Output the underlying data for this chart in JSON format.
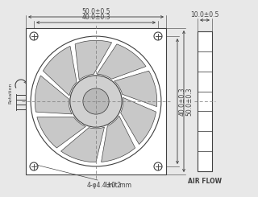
{
  "bg_color": "#e8e8e8",
  "line_color": "#404040",
  "dashed_color": "#808080",
  "unit_text": "Unit:mm",
  "airflow_text": "AIR FLOW",
  "rotation_text": "Rotation",
  "hole_text": "4-φ4.4±0.2",
  "dim_50": "50.0±0.5",
  "dim_40": "40.0±0.3",
  "dim_h40": "40.0±0.3",
  "dim_h50": "50.0±0.3",
  "dim_10": "10.0±0.5",
  "num_blades": 9,
  "figw": 3.0,
  "figh": 2.21
}
